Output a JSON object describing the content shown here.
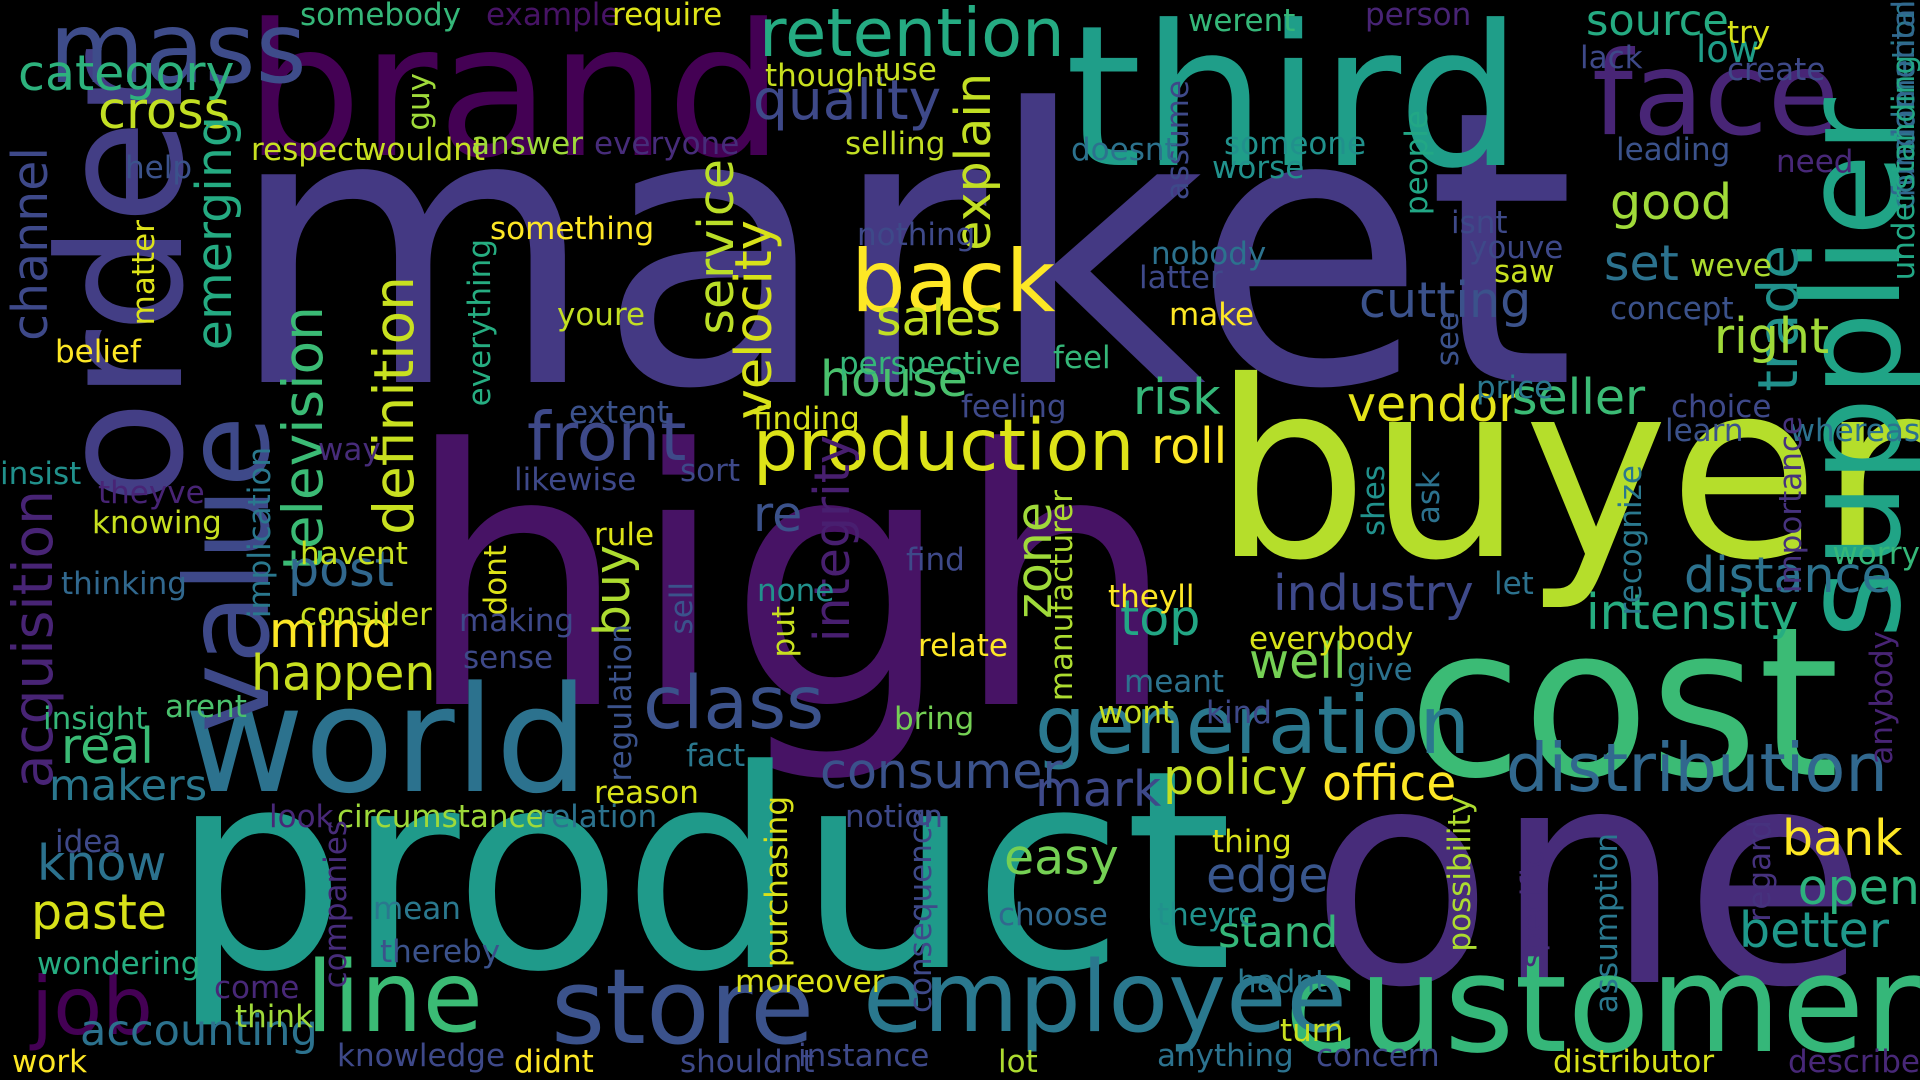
{
  "words": [
    {
      "text": "market",
      "color": "#443983"
    },
    {
      "text": "high",
      "color": "#471365"
    },
    {
      "text": "product",
      "color": "#1f9a8a"
    },
    {
      "text": "one",
      "color": "#472c7a"
    },
    {
      "text": "buyer",
      "color": "#b5de2b"
    },
    {
      "text": "cost",
      "color": "#3bbb75"
    },
    {
      "text": "customer",
      "color": "#35b779"
    },
    {
      "text": "third",
      "color": "#1f9e89"
    },
    {
      "text": "brand",
      "color": "#440154"
    },
    {
      "text": "order",
      "color": "#433e85"
    },
    {
      "text": "world",
      "color": "#2c728e"
    },
    {
      "text": "value",
      "color": "#3e4989"
    },
    {
      "text": "face",
      "color": "#482576"
    },
    {
      "text": "supplier",
      "color": "#20a486"
    },
    {
      "text": "mass",
      "color": "#3e4c8a"
    },
    {
      "text": "store",
      "color": "#3b528b"
    },
    {
      "text": "employee",
      "color": "#2a788e"
    },
    {
      "text": "line",
      "color": "#3bbb75"
    },
    {
      "text": "generation",
      "color": "#2a788e"
    },
    {
      "text": "production",
      "color": "#dde318"
    },
    {
      "text": "distribution",
      "color": "#31688e"
    },
    {
      "text": "back",
      "color": "#fde725"
    },
    {
      "text": "retention",
      "color": "#25ab82"
    },
    {
      "text": "job",
      "color": "#440154"
    },
    {
      "text": "class",
      "color": "#3b528b"
    },
    {
      "text": "front",
      "color": "#3e4989"
    },
    {
      "text": "acquisition",
      "color": "#482475"
    },
    {
      "text": "television",
      "color": "#3bbb75"
    },
    {
      "text": "definition",
      "color": "#c8e020"
    },
    {
      "text": "trade",
      "color": "#21918c"
    },
    {
      "text": "velocity",
      "color": "#d8e219"
    },
    {
      "text": "service",
      "color": "#bade28"
    },
    {
      "text": "quality",
      "color": "#3e4989"
    },
    {
      "text": "cross",
      "color": "#c2df23"
    },
    {
      "text": "category",
      "color": "#2db27d"
    },
    {
      "text": "emerging",
      "color": "#25ab82"
    },
    {
      "text": "channel",
      "color": "#3e4989"
    },
    {
      "text": "explain",
      "color": "#c2df23"
    },
    {
      "text": "sales",
      "color": "#c2df23"
    },
    {
      "text": "house",
      "color": "#4ac16d"
    },
    {
      "text": "industry",
      "color": "#3e4989"
    },
    {
      "text": "cutting",
      "color": "#3b528b"
    },
    {
      "text": "vendor",
      "color": "#e5e419"
    },
    {
      "text": "seller",
      "color": "#3bbb75"
    },
    {
      "text": "good",
      "color": "#a0da39"
    },
    {
      "text": "set",
      "color": "#2c728e"
    },
    {
      "text": "right",
      "color": "#a0da39"
    },
    {
      "text": "risk",
      "color": "#35b779"
    },
    {
      "text": "roll",
      "color": "#fde725"
    },
    {
      "text": "re",
      "color": "#3b528b"
    },
    {
      "text": "integrity",
      "color": "#481f70"
    },
    {
      "text": "zone",
      "color": "#9fda3a"
    },
    {
      "text": "buy",
      "color": "#addc30"
    },
    {
      "text": "top",
      "color": "#22a785"
    },
    {
      "text": "distance",
      "color": "#2c728e"
    },
    {
      "text": "intensity",
      "color": "#26ad81"
    },
    {
      "text": "well",
      "color": "#75d054"
    },
    {
      "text": "policy",
      "color": "#c2df23"
    },
    {
      "text": "office",
      "color": "#fde725"
    },
    {
      "text": "mark",
      "color": "#3e4989"
    },
    {
      "text": "consumer",
      "color": "#3b528b"
    },
    {
      "text": "easy",
      "color": "#75d054"
    },
    {
      "text": "edge",
      "color": "#39568c"
    },
    {
      "text": "stand",
      "color": "#35b779"
    },
    {
      "text": "bank",
      "color": "#fde725"
    },
    {
      "text": "open",
      "color": "#2db27d"
    },
    {
      "text": "better",
      "color": "#1f988b"
    },
    {
      "text": "post",
      "color": "#31688e"
    },
    {
      "text": "mind",
      "color": "#fde725"
    },
    {
      "text": "happen",
      "color": "#c8e020"
    },
    {
      "text": "real",
      "color": "#3bbb75"
    },
    {
      "text": "makers",
      "color": "#2a788e"
    },
    {
      "text": "know",
      "color": "#2c728e"
    },
    {
      "text": "paste",
      "color": "#d8e219"
    },
    {
      "text": "accounting",
      "color": "#2c728e"
    },
    {
      "text": "source",
      "color": "#25ab82"
    },
    {
      "text": "low",
      "color": "#1f9e89"
    },
    {
      "text": "somebody",
      "color": "#35b779"
    },
    {
      "text": "example",
      "color": "#471365"
    },
    {
      "text": "require",
      "color": "#dde318"
    },
    {
      "text": "werent",
      "color": "#35b779"
    },
    {
      "text": "person",
      "color": "#482475"
    },
    {
      "text": "try",
      "color": "#d8e219"
    },
    {
      "text": "lack",
      "color": "#3e4989"
    },
    {
      "text": "create",
      "color": "#3e4989"
    },
    {
      "text": "consideration",
      "color": "#2a788e"
    },
    {
      "text": "fundamental",
      "color": "#31688e"
    },
    {
      "text": "understanding",
      "color": "#22a785"
    },
    {
      "text": "leading",
      "color": "#3b528b"
    },
    {
      "text": "need",
      "color": "#482878"
    },
    {
      "text": "thought",
      "color": "#c8e020"
    },
    {
      "text": "use",
      "color": "#c8e020"
    },
    {
      "text": "assume",
      "color": "#3e4989"
    },
    {
      "text": "worse",
      "color": "#21918c"
    },
    {
      "text": "someone",
      "color": "#21918c"
    },
    {
      "text": "people",
      "color": "#22a785"
    },
    {
      "text": "doesnt",
      "color": "#2c728e"
    },
    {
      "text": "help",
      "color": "#3b528b"
    },
    {
      "text": "respect",
      "color": "#c8e020"
    },
    {
      "text": "wouldnt",
      "color": "#c8e020"
    },
    {
      "text": "guy",
      "color": "#9fda3a"
    },
    {
      "text": "answer",
      "color": "#9fda3a"
    },
    {
      "text": "everyone",
      "color": "#472c7a"
    },
    {
      "text": "selling",
      "color": "#c2df23"
    },
    {
      "text": "matter",
      "color": "#dde318"
    },
    {
      "text": "something",
      "color": "#fde725"
    },
    {
      "text": "nothing",
      "color": "#3e4989"
    },
    {
      "text": "isnt",
      "color": "#3e4989"
    },
    {
      "text": "youve",
      "color": "#3e4989"
    },
    {
      "text": "nobody",
      "color": "#2c728e"
    },
    {
      "text": "latter",
      "color": "#3e4989"
    },
    {
      "text": "saw",
      "color": "#c8e020"
    },
    {
      "text": "weve",
      "color": "#addc30"
    },
    {
      "text": "concept",
      "color": "#3b528b"
    },
    {
      "text": "belief",
      "color": "#fde725"
    },
    {
      "text": "everything",
      "color": "#26ad81"
    },
    {
      "text": "youre",
      "color": "#c2df23"
    },
    {
      "text": "make",
      "color": "#fde725"
    },
    {
      "text": "perspective",
      "color": "#35b779"
    },
    {
      "text": "feel",
      "color": "#35b779"
    },
    {
      "text": "see",
      "color": "#3b528b"
    },
    {
      "text": "price",
      "color": "#2a788e"
    },
    {
      "text": "choice",
      "color": "#3e4989"
    },
    {
      "text": "learn",
      "color": "#3b528b"
    },
    {
      "text": "whereas",
      "color": "#2c728e"
    },
    {
      "text": "importance",
      "color": "#46327e"
    },
    {
      "text": "extent",
      "color": "#3b528b"
    },
    {
      "text": "feeling",
      "color": "#3e4989"
    },
    {
      "text": "finding",
      "color": "#d8e219"
    },
    {
      "text": "way",
      "color": "#472c7a"
    },
    {
      "text": "insist",
      "color": "#21918c"
    },
    {
      "text": "implication",
      "color": "#2a788e"
    },
    {
      "text": "theyve",
      "color": "#482475"
    },
    {
      "text": "likewise",
      "color": "#3e4989"
    },
    {
      "text": "sort",
      "color": "#3e4989"
    },
    {
      "text": "knowing",
      "color": "#c8e020"
    },
    {
      "text": "havent",
      "color": "#c8e020"
    },
    {
      "text": "rule",
      "color": "#dde318"
    },
    {
      "text": "dont",
      "color": "#dde318"
    },
    {
      "text": "find",
      "color": "#3e4989"
    },
    {
      "text": "manufacturer",
      "color": "#addc30"
    },
    {
      "text": "shes",
      "color": "#21918c"
    },
    {
      "text": "ask",
      "color": "#2c728e"
    },
    {
      "text": "recognize",
      "color": "#2a788e"
    },
    {
      "text": "worry",
      "color": "#35b779"
    },
    {
      "text": "thinking",
      "color": "#31688e"
    },
    {
      "text": "consider",
      "color": "#c8e020"
    },
    {
      "text": "making",
      "color": "#3e4989"
    },
    {
      "text": "none",
      "color": "#21918c"
    },
    {
      "text": "theyll",
      "color": "#fde725"
    },
    {
      "text": "let",
      "color": "#2c728e"
    },
    {
      "text": "sell",
      "color": "#3b528b"
    },
    {
      "text": "put",
      "color": "#c8e020"
    },
    {
      "text": "relate",
      "color": "#fde725"
    },
    {
      "text": "everybody",
      "color": "#d8e219"
    },
    {
      "text": "sense",
      "color": "#3e4989"
    },
    {
      "text": "meant",
      "color": "#2c728e"
    },
    {
      "text": "give",
      "color": "#2c728e"
    },
    {
      "text": "arent",
      "color": "#4ac16d"
    },
    {
      "text": "insight",
      "color": "#35b779"
    },
    {
      "text": "regulation",
      "color": "#3b528b"
    },
    {
      "text": "wont",
      "color": "#c8e020"
    },
    {
      "text": "kind",
      "color": "#3e4989"
    },
    {
      "text": "bring",
      "color": "#75d054"
    },
    {
      "text": "anybody",
      "color": "#482475"
    },
    {
      "text": "fact",
      "color": "#2a788e"
    },
    {
      "text": "reason",
      "color": "#d8e219"
    },
    {
      "text": "circumstance",
      "color": "#9fda3a"
    },
    {
      "text": "relation",
      "color": "#2c728e"
    },
    {
      "text": "notion",
      "color": "#3e4989"
    },
    {
      "text": "look",
      "color": "#482878"
    },
    {
      "text": "idea",
      "color": "#3e4989"
    },
    {
      "text": "purchasing",
      "color": "#d8e219"
    },
    {
      "text": "companies",
      "color": "#472c7a"
    },
    {
      "text": "consequence",
      "color": "#3e4989"
    },
    {
      "text": "thing",
      "color": "#d8e219"
    },
    {
      "text": "possibility",
      "color": "#addc30"
    },
    {
      "text": "specific",
      "color": "#472c7a"
    },
    {
      "text": "assumption",
      "color": "#2a788e"
    },
    {
      "text": "regard",
      "color": "#46327e"
    },
    {
      "text": "choose",
      "color": "#31688e"
    },
    {
      "text": "theyre",
      "color": "#21918c"
    },
    {
      "text": "mean",
      "color": "#2a788e"
    },
    {
      "text": "thereby",
      "color": "#3b528b"
    },
    {
      "text": "wondering",
      "color": "#26ad81"
    },
    {
      "text": "come",
      "color": "#482878"
    },
    {
      "text": "moreover",
      "color": "#dde318"
    },
    {
      "text": "hadnt",
      "color": "#2a788e"
    },
    {
      "text": "think",
      "color": "#a0da39"
    },
    {
      "text": "turn",
      "color": "#c8e020"
    },
    {
      "text": "knowledge",
      "color": "#3e4989"
    },
    {
      "text": "anything",
      "color": "#2c728e"
    },
    {
      "text": "concern",
      "color": "#3e4989"
    },
    {
      "text": "work",
      "color": "#fde725"
    },
    {
      "text": "didnt",
      "color": "#fde725"
    },
    {
      "text": "shouldnt",
      "color": "#3e4989"
    },
    {
      "text": "instance",
      "color": "#3e4989"
    },
    {
      "text": "lot",
      "color": "#addc30"
    },
    {
      "text": "distributor",
      "color": "#d8e219"
    },
    {
      "text": "describe",
      "color": "#482878"
    }
  ]
}
